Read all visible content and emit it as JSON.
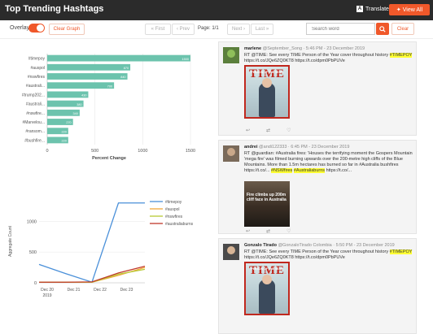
{
  "header": {
    "title": "Top Trending Hashtags",
    "translate_label": "Translate",
    "view_all_label": "View All"
  },
  "toolbar": {
    "overlay_label": "Overlay",
    "clear_graph_label": "Clear Graph",
    "first_label": "« First",
    "prev_label": "‹ Prev",
    "page_label": "Page: 1/1",
    "next_label": "Next ›",
    "last_label": "Last »",
    "search_placeholder": "Search word",
    "clear_label": "Clear"
  },
  "colors": {
    "accent": "#f0582a",
    "bar": "#6cc3ad",
    "header_bg": "#2b2b2b",
    "highlight": "#ffff33"
  },
  "icons": {
    "translate": "translate-icon",
    "view_all": "twitter-icon",
    "search": "search-icon",
    "reply": "reply-icon",
    "retweet": "retweet-icon",
    "like": "heart-icon"
  },
  "chart_data": [
    {
      "type": "bar",
      "orientation": "horizontal",
      "categories": [
        "#timepoy",
        "#auspol",
        "#nswfires",
        "#australi...",
        "#trump202...",
        "#australi...",
        "#nswfire...",
        "#Marvelou...",
        "#ransom...",
        "#bushfire..."
      ],
      "values": [
        1500,
        870,
        840,
        700,
        430,
        380,
        340,
        270,
        220,
        220
      ],
      "value_labels": [
        "1500",
        "870",
        "840",
        "700",
        "430",
        "380",
        "340",
        "270",
        "220",
        "220"
      ],
      "xlabel": "Percent Change",
      "ylabel": "",
      "xlim": [
        0,
        1500
      ],
      "xticks": [
        0,
        500,
        1000,
        1500
      ],
      "grid": true,
      "legend": "none"
    },
    {
      "type": "line",
      "categories": [
        "Dec 20\n2019",
        "Dec 21",
        "Dec 22",
        "Dec 23"
      ],
      "x": [
        0,
        1,
        2,
        3,
        4
      ],
      "xtick_labels": [
        "Dec 20",
        "Dec 21",
        "Dec 22",
        "Dec 23"
      ],
      "xtick_sublabel": "2019",
      "series": [
        {
          "name": "#timepoy",
          "color": "#4a90d9",
          "values": [
            300,
            150,
            10,
            1300,
            1300
          ]
        },
        {
          "name": "#auspol",
          "color": "#f2a93b",
          "values": [
            10,
            10,
            10,
            120,
            250
          ]
        },
        {
          "name": "#nswfires",
          "color": "#b7c934",
          "values": [
            10,
            10,
            10,
            140,
            220
          ]
        },
        {
          "name": "#australiaburns",
          "color": "#c0392b",
          "values": [
            10,
            10,
            15,
            160,
            270
          ]
        }
      ],
      "ylabel": "Aggregate Count",
      "xlabel": "",
      "ylim": [
        0,
        1350
      ],
      "yticks": [
        0,
        500,
        1000
      ],
      "grid": true,
      "legend": "top-right"
    }
  ],
  "feed": [
    {
      "name": "marlene",
      "meta": "@September_Song · 5:46 PM - 23 December 2019",
      "text_before": "RT @TIME: See every TIME Person of the Year cover throughout history ",
      "hashtag": "#TIMEPOY",
      "text_after": " https://t.co/JQe6ZQ0KT8 https://t.co/dpm0PbPUVe",
      "media": "time-cover",
      "cover_title": "PERSON OF THE YEAR",
      "cover_sub": "TIME"
    },
    {
      "name": "andrei",
      "meta": "@andi122333 · 6:45 PM - 23 December 2019",
      "text_before": "RT @guardian: #Australia fires: 'Houses the terrifying moment the Gospers Mountain 'mega fire' was filmed burning upwards over the 200-metre high cliffs of the Blue Mountains. More than 1.5m hectares has burned so far in #Australia bushfires https://t.co/...",
      "hashtag": "#NSWfires",
      "hashtag2": "#Australiaburns",
      "text_after": " https://t.co/...",
      "media": "fires-photo",
      "media_caption": "Fire climbs up 200m cliff face in Australia"
    },
    {
      "name": "Gonzalo Tirado",
      "meta": "@GonzaloTirado Colombia · 5:50 PM - 23 December 2019",
      "text_before": "RT @TIME: See every TIME Person of the Year cover throughout history ",
      "hashtag": "#TIMEPOY",
      "text_after": " https://t.co/JQe6ZQ0KT8 https://t.co/dpm0PbPUVe",
      "media": "time-cover",
      "cover_title": "PERSON OF THE YEAR",
      "cover_sub": "TIME"
    }
  ]
}
